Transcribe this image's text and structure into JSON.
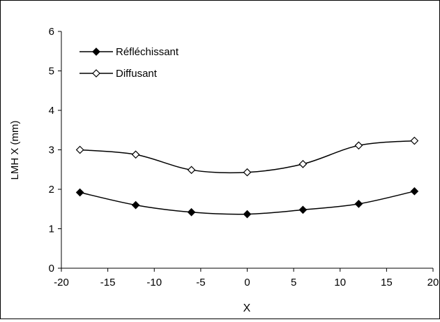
{
  "chart_data": {
    "type": "line",
    "title": "",
    "xlabel": "X",
    "ylabel": "LMH X (mm)",
    "xlim": [
      -20,
      20
    ],
    "ylim": [
      0,
      6
    ],
    "x_ticks": [
      -20,
      -15,
      -10,
      -5,
      0,
      5,
      10,
      15,
      20
    ],
    "y_ticks": [
      0,
      1,
      2,
      3,
      4,
      5,
      6
    ],
    "grid": false,
    "legend_position": "top-left",
    "series": [
      {
        "name": "Réfléchissant",
        "marker": "filled-diamond",
        "color": "#000000",
        "x": [
          -18,
          -12,
          -6,
          0,
          6,
          12,
          18
        ],
        "y": [
          1.92,
          1.6,
          1.42,
          1.37,
          1.48,
          1.63,
          1.95
        ]
      },
      {
        "name": "Diffusant",
        "marker": "open-diamond",
        "color": "#000000",
        "x": [
          -18,
          -12,
          -6,
          0,
          6,
          12,
          18
        ],
        "y": [
          3.0,
          2.88,
          2.49,
          2.43,
          2.64,
          3.11,
          3.23
        ]
      }
    ]
  }
}
